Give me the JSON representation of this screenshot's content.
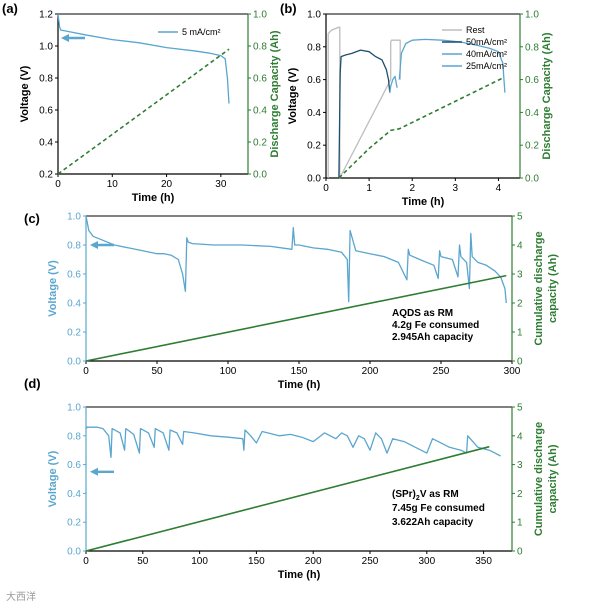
{
  "colors": {
    "blue": "#5aa6cf",
    "darkblue": "#1f4f6e",
    "gray": "#bdbdbd",
    "green": "#2e7d32",
    "dashgreen": "#2e7d32"
  },
  "watermark": "大西洋",
  "chart_data": [
    {
      "id": "a",
      "panel_label": "(a)",
      "type": "line",
      "xlabel": "Time (h)",
      "ylabel": "Voltage (V)",
      "y2label": "Discharge Capacity (Ah)",
      "xlim": [
        0,
        35
      ],
      "ylim": [
        0.2,
        1.2
      ],
      "y2lim": [
        0,
        1.0
      ],
      "xticks": [
        0,
        10,
        20,
        30
      ],
      "yticks": [
        0.2,
        0.4,
        0.6,
        0.8,
        1.0,
        1.2
      ],
      "y2ticks": [
        0.0,
        0.2,
        0.4,
        0.6,
        0.8,
        1.0
      ],
      "series": [
        {
          "name": "5 mA/cm²",
          "axis": "y",
          "style": "solid",
          "color": "blue",
          "x": [
            0,
            0.3,
            0.5,
            2,
            5,
            10,
            15,
            20,
            25,
            28,
            30,
            30.8,
            31.2,
            31.5
          ],
          "y": [
            1.2,
            1.12,
            1.1,
            1.09,
            1.07,
            1.04,
            1.02,
            0.99,
            0.97,
            0.955,
            0.94,
            0.92,
            0.8,
            0.64
          ]
        },
        {
          "axis": "y2",
          "style": "dashed",
          "color": "dashgreen",
          "x": [
            0,
            31.5
          ],
          "y": [
            0,
            0.78
          ]
        }
      ],
      "arrow": "left"
    },
    {
      "id": "b",
      "panel_label": "(b)",
      "type": "line",
      "xlabel": "Time (h)",
      "ylabel": "Voltage (V)",
      "y2label": "Discharge Capacity (Ah)",
      "xlim": [
        0,
        4.5
      ],
      "ylim": [
        0,
        1.0
      ],
      "y2lim": [
        0,
        1.0
      ],
      "xticks": [
        0,
        1,
        2,
        3,
        4
      ],
      "yticks": [
        0.0,
        0.2,
        0.4,
        0.6,
        0.8,
        1.0
      ],
      "y2ticks": [
        0.0,
        0.2,
        0.4,
        0.6,
        0.8,
        1.0
      ],
      "series": [
        {
          "name": "Rest",
          "axis": "y",
          "style": "solid",
          "color": "gray",
          "x": [
            0.05,
            0.05,
            0.12,
            0.3,
            0.32,
            0.32,
            1.5,
            1.5,
            1.52,
            1.7,
            1.72,
            1.72
          ],
          "y": [
            0.0,
            0.88,
            0.9,
            0.92,
            0.92,
            0.0,
            0.6,
            0.83,
            0.84,
            0.84,
            0.84,
            0.6
          ]
        },
        {
          "name": "50mA/cm²",
          "axis": "y",
          "style": "solid",
          "color": "darkblue",
          "x": [
            0.3,
            0.33,
            0.35,
            0.45,
            0.6,
            0.8,
            1.0,
            1.15,
            1.3,
            1.4,
            1.45,
            1.48
          ],
          "y": [
            0.0,
            0.64,
            0.74,
            0.75,
            0.76,
            0.78,
            0.77,
            0.74,
            0.72,
            0.66,
            0.6,
            0.52
          ]
        },
        {
          "name": "40mA/cm²",
          "axis": "y",
          "style": "solid",
          "color": "blue",
          "x": [
            1.48,
            1.5,
            1.55,
            1.6,
            1.65
          ],
          "y": [
            0.52,
            0.56,
            0.6,
            0.62,
            0.55
          ]
        },
        {
          "name": "25mA/cm²",
          "axis": "y",
          "style": "solid",
          "color": "blue",
          "x": [
            1.7,
            1.75,
            1.85,
            2.0,
            2.3,
            2.7,
            3.1,
            3.5,
            3.8,
            4.0,
            4.1,
            4.15
          ],
          "y": [
            0.6,
            0.76,
            0.82,
            0.84,
            0.845,
            0.84,
            0.83,
            0.81,
            0.79,
            0.77,
            0.7,
            0.52
          ]
        },
        {
          "axis": "y2",
          "style": "dashed",
          "color": "dashgreen",
          "x": [
            0.3,
            1.0,
            1.5,
            1.7,
            4.1
          ],
          "y": [
            0,
            0.18,
            0.29,
            0.3,
            0.61
          ]
        }
      ]
    },
    {
      "id": "c",
      "panel_label": "(c)",
      "type": "line",
      "xlabel": "Time (h)",
      "ylabel": "Voltage (V)",
      "y2label": "Cumulative discharge capacity (Ah)",
      "y2label_lines": [
        "Cumulative discharge",
        "capacity (Ah)"
      ],
      "xlim": [
        0,
        300
      ],
      "ylim": [
        0,
        1.0
      ],
      "y2lim": [
        0,
        5
      ],
      "xticks": [
        0,
        50,
        100,
        150,
        200,
        250,
        300
      ],
      "yticks": [
        0.0,
        0.2,
        0.4,
        0.6,
        0.8,
        1.0
      ],
      "y2ticks": [
        0,
        1,
        2,
        3,
        4,
        5
      ],
      "annotation": [
        "AQDS as RM",
        "4.2g Fe consumed",
        "2.945Ah capacity"
      ],
      "series": [
        {
          "axis": "y",
          "style": "solid",
          "color": "blue",
          "x": [
            0,
            1,
            2,
            5,
            10,
            20,
            30,
            40,
            50,
            55,
            60,
            65,
            68,
            70,
            71,
            72,
            75,
            90,
            110,
            130,
            145,
            146,
            147,
            150,
            160,
            170,
            180,
            184,
            185,
            186,
            190,
            200,
            210,
            220,
            226,
            227,
            228,
            235,
            245,
            248,
            249,
            250,
            258,
            262,
            263,
            264,
            268,
            270,
            271,
            272,
            276,
            282,
            288,
            292,
            295,
            296
          ],
          "y": [
            1.0,
            0.95,
            0.9,
            0.86,
            0.84,
            0.8,
            0.78,
            0.76,
            0.74,
            0.74,
            0.73,
            0.7,
            0.6,
            0.48,
            0.85,
            0.82,
            0.81,
            0.8,
            0.8,
            0.79,
            0.77,
            0.92,
            0.8,
            0.8,
            0.78,
            0.77,
            0.75,
            0.7,
            0.41,
            0.9,
            0.76,
            0.74,
            0.72,
            0.68,
            0.56,
            0.77,
            0.73,
            0.7,
            0.66,
            0.57,
            0.76,
            0.72,
            0.7,
            0.58,
            0.8,
            0.72,
            0.68,
            0.5,
            0.88,
            0.72,
            0.68,
            0.66,
            0.62,
            0.58,
            0.5,
            0.4
          ]
        },
        {
          "axis": "y2",
          "style": "solid",
          "color": "green",
          "x": [
            0,
            296
          ],
          "y": [
            0,
            2.945
          ]
        }
      ],
      "arrow": "left"
    },
    {
      "id": "d",
      "panel_label": "(d)",
      "type": "line",
      "xlabel": "Time (h)",
      "ylabel": "Voltage (V)",
      "y2label": "Cumulative discharge capacity (Ah)",
      "y2label_lines": [
        "Cumulative discharge",
        "capacity (Ah)"
      ],
      "xlim": [
        0,
        375
      ],
      "ylim": [
        0,
        1.0
      ],
      "y2lim": [
        0,
        5
      ],
      "xticks": [
        0,
        50,
        100,
        150,
        200,
        250,
        300,
        350
      ],
      "yticks": [
        0.0,
        0.2,
        0.4,
        0.6,
        0.8,
        1.0
      ],
      "y2ticks": [
        0,
        1,
        2,
        3,
        4,
        5
      ],
      "annotation": [
        "(SPr)",
        "2",
        "V as RM",
        "7.45g Fe consumed",
        "3.622Ah capacity"
      ],
      "series": [
        {
          "axis": "y",
          "style": "solid",
          "color": "blue",
          "x": [
            0,
            1,
            5,
            10,
            15,
            20,
            22,
            23,
            30,
            34,
            35,
            42,
            47,
            48,
            55,
            60,
            61,
            68,
            73,
            74,
            80,
            85,
            86,
            95,
            110,
            125,
            138,
            139,
            140,
            145,
            150,
            155,
            160,
            170,
            180,
            190,
            200,
            210,
            215,
            220,
            225,
            230,
            235,
            240,
            245,
            250,
            255,
            260,
            265,
            270,
            280,
            290,
            300,
            305,
            310,
            320,
            330,
            335,
            336,
            345,
            355,
            360,
            365
          ],
          "y": [
            0.85,
            0.86,
            0.86,
            0.86,
            0.85,
            0.8,
            0.65,
            0.85,
            0.82,
            0.7,
            0.85,
            0.81,
            0.68,
            0.85,
            0.82,
            0.72,
            0.85,
            0.82,
            0.7,
            0.84,
            0.82,
            0.74,
            0.83,
            0.82,
            0.8,
            0.79,
            0.78,
            0.7,
            0.84,
            0.8,
            0.75,
            0.83,
            0.82,
            0.8,
            0.81,
            0.79,
            0.76,
            0.82,
            0.8,
            0.78,
            0.82,
            0.8,
            0.72,
            0.8,
            0.78,
            0.7,
            0.82,
            0.78,
            0.68,
            0.78,
            0.76,
            0.72,
            0.68,
            0.78,
            0.76,
            0.72,
            0.7,
            0.68,
            0.8,
            0.72,
            0.7,
            0.68,
            0.66
          ]
        },
        {
          "axis": "y2",
          "style": "solid",
          "color": "green",
          "x": [
            0,
            355
          ],
          "y": [
            0,
            3.622
          ]
        }
      ],
      "arrow": "left"
    }
  ]
}
